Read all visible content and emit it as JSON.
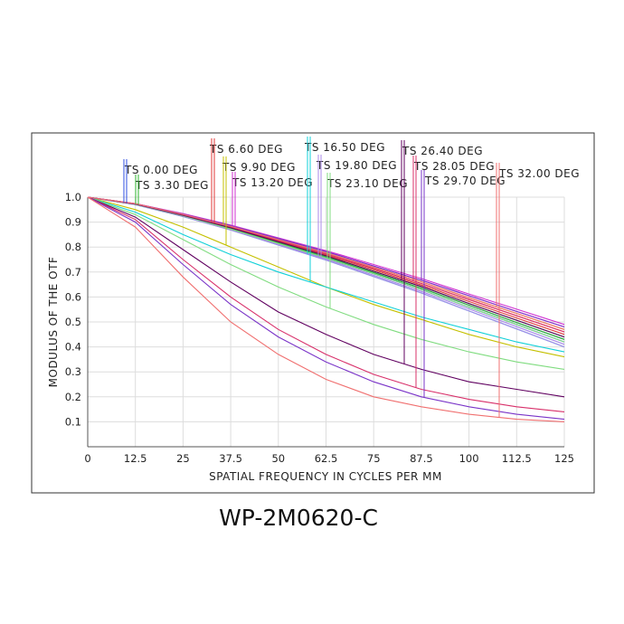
{
  "chart_data": {
    "type": "line",
    "title": "WP-2M0620-C",
    "x_label": "SPATIAL FREQUENCY IN CYCLES PER MM",
    "y_label": "MODULUS OF THE OTF",
    "x": [
      0,
      12.5,
      25,
      37.5,
      50,
      62.5,
      75,
      87.5,
      100,
      112.5,
      125
    ],
    "xlim": [
      0,
      125
    ],
    "xticks": [
      0,
      12.5,
      25,
      37.5,
      50,
      62.5,
      75,
      87.5,
      100,
      112.5,
      125
    ],
    "ylim": [
      0,
      1
    ],
    "yticks": [
      0.1,
      0.2,
      0.3,
      0.4,
      0.5,
      0.6,
      0.7,
      0.8,
      0.9,
      {
        "value": 1,
        "label": "1.0"
      }
    ],
    "grid": true,
    "series": [
      {
        "name": "TS 0.00 DEG",
        "color": "#2f4fe0",
        "tangential": [
          1,
          0.972,
          0.926,
          0.875,
          0.818,
          0.761,
          0.698,
          0.635,
          0.567,
          0.498,
          0.43
        ],
        "sagittal": [
          1,
          0.971,
          0.925,
          0.872,
          0.814,
          0.756,
          0.693,
          0.629,
          0.559,
          0.49,
          0.42
        ]
      },
      {
        "name": "TS 3.30 DEG",
        "color": "#2fb52f",
        "tangential": [
          1,
          0.972,
          0.927,
          0.877,
          0.821,
          0.765,
          0.703,
          0.642,
          0.574,
          0.507,
          0.44
        ],
        "sagittal": [
          1,
          0.972,
          0.926,
          0.875,
          0.818,
          0.761,
          0.698,
          0.635,
          0.567,
          0.498,
          0.43
        ]
      },
      {
        "name": "TS 6.60 DEG",
        "color": "#e03a3a",
        "tangential": [
          1,
          0.973,
          0.93,
          0.881,
          0.827,
          0.773,
          0.714,
          0.654,
          0.59,
          0.525,
          0.46
        ],
        "sagittal": [
          1,
          0.973,
          0.929,
          0.879,
          0.824,
          0.769,
          0.709,
          0.648,
          0.582,
          0.516,
          0.45
        ]
      },
      {
        "name": "TS 9.90 DEG",
        "color": "#c4c000",
        "tangential": [
          1,
          0.974,
          0.931,
          0.883,
          0.83,
          0.777,
          0.719,
          0.661,
          0.597,
          0.534,
          0.47
        ],
        "sagittal": [
          1,
          0.95,
          0.88,
          0.8,
          0.72,
          0.64,
          0.57,
          0.51,
          0.45,
          0.4,
          0.36
        ]
      },
      {
        "name": "TS 13.20 DEG",
        "color": "#d030d0",
        "tangential": [
          1,
          0.974,
          0.934,
          0.888,
          0.837,
          0.786,
          0.73,
          0.674,
          0.612,
          0.551,
          0.49
        ],
        "sagittal": [
          1,
          0.974,
          0.932,
          0.886,
          0.834,
          0.782,
          0.724,
          0.667,
          0.605,
          0.542,
          0.48
        ]
      },
      {
        "name": "TS  16.50 DEG",
        "color": "#10d0d8",
        "tangential": [
          1,
          0.97,
          0.922,
          0.868,
          0.808,
          0.748,
          0.682,
          0.616,
          0.544,
          0.472,
          0.4
        ],
        "sagittal": [
          1,
          0.94,
          0.85,
          0.77,
          0.7,
          0.64,
          0.58,
          0.52,
          0.47,
          0.42,
          0.38
        ]
      },
      {
        "name": "TS  19.80 DEG",
        "color": "#a888e8",
        "tangential": [
          1,
          0.971,
          0.923,
          0.87,
          0.811,
          0.752,
          0.687,
          0.622,
          0.552,
          0.481,
          0.41
        ],
        "sagittal": [
          1,
          0.97,
          0.922,
          0.868,
          0.808,
          0.748,
          0.682,
          0.616,
          0.544,
          0.472,
          0.4
        ]
      },
      {
        "name": "TS  23.10 DEG",
        "color": "#80dc80",
        "tangential": [
          1,
          0.971,
          0.925,
          0.872,
          0.814,
          0.756,
          0.693,
          0.629,
          0.559,
          0.49,
          0.42
        ],
        "sagittal": [
          1,
          0.93,
          0.83,
          0.73,
          0.64,
          0.56,
          0.49,
          0.43,
          0.38,
          0.34,
          0.31
        ]
      },
      {
        "name": "TS 26.40 DEG",
        "color": "#600060",
        "tangential": [
          1,
          0.972,
          0.927,
          0.877,
          0.821,
          0.765,
          0.703,
          0.642,
          0.574,
          0.507,
          0.44
        ],
        "sagittal": [
          1,
          0.92,
          0.79,
          0.66,
          0.54,
          0.45,
          0.37,
          0.31,
          0.26,
          0.23,
          0.2
        ]
      },
      {
        "name": "TS 28.05 DEG",
        "color": "#d8306a",
        "tangential": [
          1,
          0.973,
          0.93,
          0.881,
          0.827,
          0.773,
          0.714,
          0.654,
          0.59,
          0.525,
          0.46
        ],
        "sagittal": [
          1,
          0.91,
          0.75,
          0.6,
          0.47,
          0.37,
          0.29,
          0.23,
          0.19,
          0.16,
          0.14
        ]
      },
      {
        "name": "TS 29.70 DEG",
        "color": "#7a34c8",
        "tangential": [
          1,
          0.974,
          0.932,
          0.886,
          0.834,
          0.782,
          0.724,
          0.667,
          0.605,
          0.542,
          0.48
        ],
        "sagittal": [
          1,
          0.9,
          0.73,
          0.57,
          0.44,
          0.34,
          0.26,
          0.2,
          0.16,
          0.13,
          0.11
        ]
      },
      {
        "name": "TS 32.00 DEG",
        "color": "#f07070",
        "tangential": [
          1,
          0.974,
          0.931,
          0.883,
          0.83,
          0.777,
          0.719,
          0.661,
          0.597,
          0.534,
          0.47
        ],
        "sagittal": [
          1,
          0.88,
          0.68,
          0.5,
          0.37,
          0.27,
          0.2,
          0.16,
          0.13,
          0.11,
          0.1
        ]
      }
    ]
  }
}
